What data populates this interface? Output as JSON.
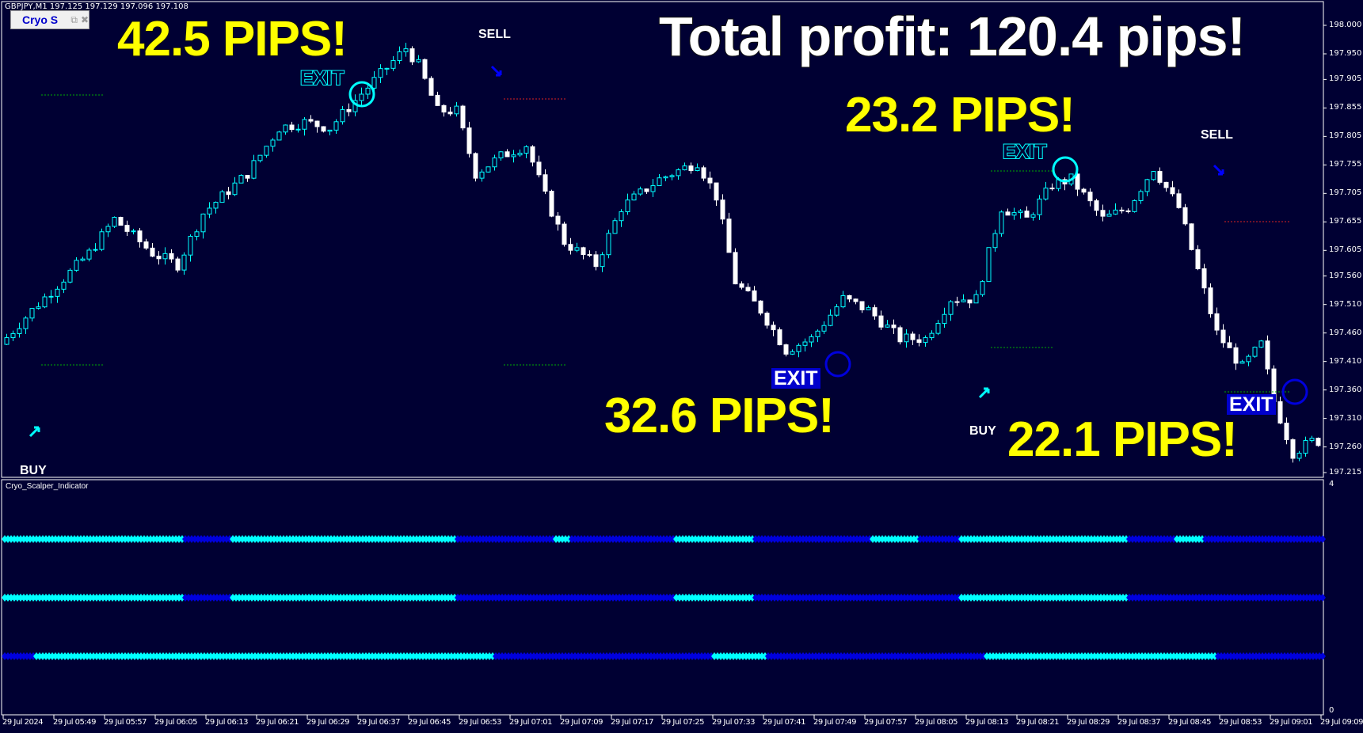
{
  "header": {
    "symbol_line": "GBPJPY,M1  197.125 197.129 197.096 197.108",
    "indicator_window_name": "Cryo S",
    "restore_icon": "restore-icon",
    "close_icon": "close-icon"
  },
  "overlay": {
    "total": "Total profit: 120.4 pips!",
    "trades": [
      {
        "pips": "42.5 PIPS!",
        "exit": "EXIT",
        "signal": "SELL"
      },
      {
        "pips": "32.6 PIPS!",
        "exit": "EXIT",
        "signal": "BUY"
      },
      {
        "pips": "23.2 PIPS!",
        "exit": "EXIT",
        "signal": "SELL"
      },
      {
        "pips": "22.1 PIPS!",
        "exit": "EXIT",
        "signal": "BUY"
      }
    ],
    "first_buy": "BUY"
  },
  "subwindow": {
    "title": "Cryo_Scalper_Indicator",
    "scale_max": "4",
    "scale_min": "0"
  },
  "colors": {
    "background": "#000033",
    "bull": "#00ffff",
    "bear": "#ffffff",
    "indicator_on": "#00ffff",
    "indicator_off": "#0000dd",
    "text_yellow": "#ffff00",
    "exit_blue": "#0000cc"
  },
  "chart_data": {
    "type": "candlestick",
    "symbol": "GBPJPY",
    "timeframe": "M1",
    "ylim": [
      197.215,
      198.0
    ],
    "y_ticks": [
      "198.000",
      "197.950",
      "197.905",
      "197.855",
      "197.805",
      "197.755",
      "197.705",
      "197.655",
      "197.605",
      "197.560",
      "197.510",
      "197.460",
      "197.410",
      "197.360",
      "197.310",
      "197.260",
      "197.215"
    ],
    "x_ticks": [
      "29 Jul 2024",
      "29 Jul 05:49",
      "29 Jul 05:57",
      "29 Jul 06:05",
      "29 Jul 06:13",
      "29 Jul 06:21",
      "29 Jul 06:29",
      "29 Jul 06:37",
      "29 Jul 06:45",
      "29 Jul 06:53",
      "29 Jul 07:01",
      "29 Jul 07:09",
      "29 Jul 07:17",
      "29 Jul 07:25",
      "29 Jul 07:33",
      "29 Jul 07:41",
      "29 Jul 07:49",
      "29 Jul 07:57",
      "29 Jul 08:05",
      "29 Jul 08:13",
      "29 Jul 08:21",
      "29 Jul 08:29",
      "29 Jul 08:37",
      "29 Jul 08:45",
      "29 Jul 08:53",
      "29 Jul 09:01",
      "29 Jul 09:09"
    ],
    "price_path": [
      [
        "05:41",
        197.44
      ],
      [
        "05:46",
        197.5
      ],
      [
        "05:55",
        197.6
      ],
      [
        "05:59",
        197.66
      ],
      [
        "06:05",
        197.6
      ],
      [
        "06:09",
        197.58
      ],
      [
        "06:13",
        197.67
      ],
      [
        "06:20",
        197.74
      ],
      [
        "06:25",
        197.82
      ],
      [
        "06:29",
        197.83
      ],
      [
        "06:33",
        197.82
      ],
      [
        "06:38",
        197.88
      ],
      [
        "06:45",
        197.96
      ],
      [
        "06:47",
        197.93
      ],
      [
        "06:50",
        197.85
      ],
      [
        "06:53",
        197.85
      ],
      [
        "06:56",
        197.74
      ],
      [
        "07:00",
        197.77
      ],
      [
        "07:04",
        197.79
      ],
      [
        "07:07",
        197.7
      ],
      [
        "07:10",
        197.62
      ],
      [
        "07:15",
        197.58
      ],
      [
        "07:19",
        197.68
      ],
      [
        "07:25",
        197.73
      ],
      [
        "07:31",
        197.76
      ],
      [
        "07:34",
        197.7
      ],
      [
        "07:37",
        197.55
      ],
      [
        "07:41",
        197.5
      ],
      [
        "07:45",
        197.43
      ],
      [
        "07:49",
        197.45
      ],
      [
        "07:54",
        197.52
      ],
      [
        "07:58",
        197.5
      ],
      [
        "08:03",
        197.45
      ],
      [
        "08:07",
        197.45
      ],
      [
        "08:11",
        197.52
      ],
      [
        "08:15",
        197.52
      ],
      [
        "08:19",
        197.68
      ],
      [
        "08:23",
        197.66
      ],
      [
        "08:27",
        197.72
      ],
      [
        "08:30",
        197.73
      ],
      [
        "08:35",
        197.66
      ],
      [
        "08:39",
        197.68
      ],
      [
        "08:43",
        197.75
      ],
      [
        "08:47",
        197.68
      ],
      [
        "08:50",
        197.57
      ],
      [
        "08:53",
        197.46
      ],
      [
        "08:57",
        197.4
      ],
      [
        "09:00",
        197.44
      ],
      [
        "09:02",
        197.34
      ],
      [
        "09:05",
        197.25
      ],
      [
        "09:08",
        197.27
      ]
    ],
    "indicator_rows": [
      {
        "on_segments": [
          [
            "05:41",
            "06:09"
          ],
          [
            "06:17",
            "06:52"
          ],
          [
            "07:08",
            "07:10"
          ],
          [
            "07:27",
            "07:39"
          ],
          [
            "07:58",
            "08:05"
          ],
          [
            "08:12",
            "08:38"
          ],
          [
            "08:46",
            "08:50"
          ]
        ]
      },
      {
        "on_segments": [
          [
            "05:41",
            "06:09"
          ],
          [
            "06:17",
            "06:52"
          ],
          [
            "07:27",
            "07:39"
          ],
          [
            "08:12",
            "08:38"
          ]
        ]
      },
      {
        "on_segments": [
          [
            "05:46",
            "06:58"
          ],
          [
            "07:33",
            "07:41"
          ],
          [
            "08:16",
            "08:52"
          ]
        ]
      }
    ]
  }
}
